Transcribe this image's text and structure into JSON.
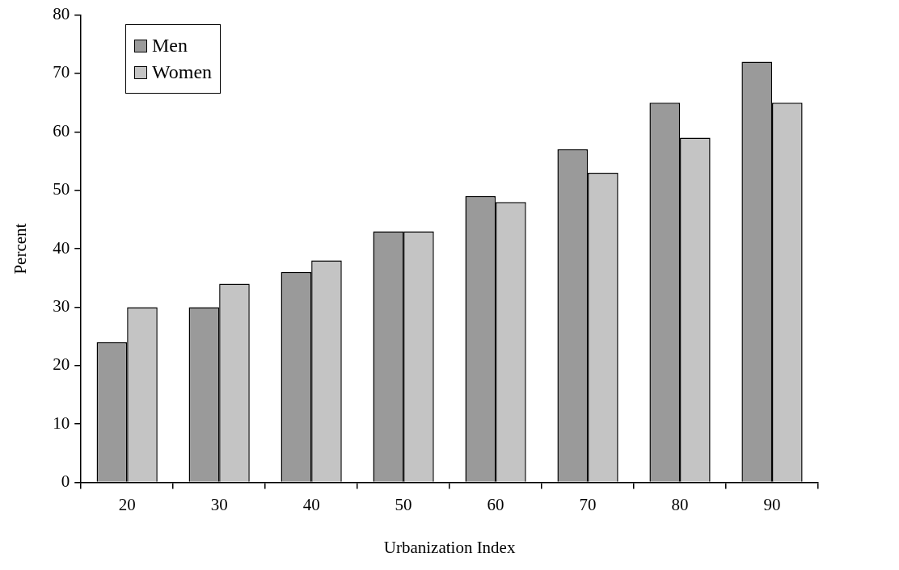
{
  "chart_data": {
    "type": "bar",
    "xlabel": "Urbanization Index",
    "ylabel": "Percent",
    "categories": [
      "20",
      "30",
      "40",
      "50",
      "60",
      "70",
      "80",
      "90"
    ],
    "series": [
      {
        "name": "Men",
        "color": "#9a9a9a",
        "values": [
          24,
          30,
          36,
          43,
          49,
          57,
          65,
          72
        ]
      },
      {
        "name": "Women",
        "color": "#c4c4c4",
        "values": [
          30,
          34,
          38,
          43,
          48,
          53,
          59,
          65
        ]
      }
    ],
    "ylim": [
      0,
      80
    ],
    "yticks": [
      0,
      10,
      20,
      30,
      40,
      50,
      60,
      70,
      80
    ],
    "grid": false,
    "legend": "top left"
  }
}
